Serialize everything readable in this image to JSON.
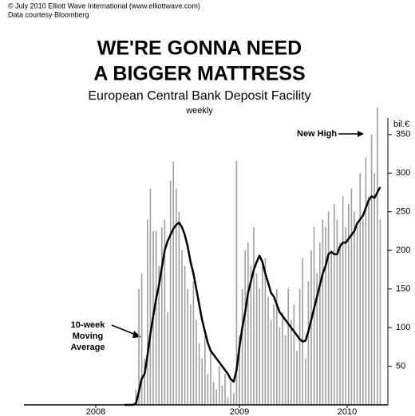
{
  "chart_data": {
    "type": "bar-line",
    "header": [
      "© July 2010 Elliott Wave International (www.elliottwave.com)",
      "Data courtesy Bloomberg"
    ],
    "title": [
      "WE'RE GONNA NEED",
      "A BIGGER MATTRESS"
    ],
    "subtitle": [
      "European Central Bank Deposit Facility",
      "weekly"
    ],
    "y_label": "bil.€",
    "xlim": [
      2008.0,
      2010.5
    ],
    "xticks": [
      {
        "value": 2008.5,
        "label": "2008"
      },
      {
        "value": 2009.5,
        "label": "2009"
      },
      {
        "value": 2010.25,
        "label": "2010"
      }
    ],
    "ylim": [
      0,
      390
    ],
    "yticks": [
      50,
      100,
      150,
      200,
      250,
      300,
      350
    ],
    "x": [
      2008.7,
      2008.72,
      2008.74,
      2008.76,
      2008.78,
      2008.8,
      2008.82,
      2008.84,
      2008.86,
      2008.88,
      2008.9,
      2008.92,
      2008.94,
      2008.96,
      2008.98,
      2009.0,
      2009.02,
      2009.04,
      2009.06,
      2009.08,
      2009.1,
      2009.12,
      2009.14,
      2009.16,
      2009.18,
      2009.2,
      2009.22,
      2009.24,
      2009.26,
      2009.28,
      2009.3,
      2009.32,
      2009.34,
      2009.36,
      2009.38,
      2009.4,
      2009.42,
      2009.44,
      2009.46,
      2009.48,
      2009.5,
      2009.52,
      2009.54,
      2009.56,
      2009.58,
      2009.6,
      2009.62,
      2009.64,
      2009.66,
      2009.68,
      2009.7,
      2009.72,
      2009.74,
      2009.76,
      2009.78,
      2009.8,
      2009.82,
      2009.84,
      2009.86,
      2009.88,
      2009.9,
      2009.92,
      2009.94,
      2009.96,
      2009.98,
      2010.0,
      2010.02,
      2010.04,
      2010.06,
      2010.08,
      2010.1,
      2010.12,
      2010.14,
      2010.16,
      2010.18,
      2010.2,
      2010.22,
      2010.24,
      2010.26,
      2010.28,
      2010.3,
      2010.32,
      2010.34,
      2010.36,
      2010.38,
      2010.4,
      2010.42,
      2010.44,
      2010.46,
      2010.48
    ],
    "series": [
      {
        "kind": "bar",
        "color": "#a0a0a0",
        "values": [
          0,
          0,
          0,
          0,
          20,
          150,
          170,
          60,
          240,
          280,
          225,
          225,
          180,
          230,
          240,
          120,
          290,
          315,
          280,
          250,
          200,
          180,
          150,
          130,
          160,
          110,
          80,
          60,
          90,
          40,
          70,
          30,
          20,
          50,
          25,
          40,
          10,
          30,
          15,
          316,
          90,
          150,
          200,
          210,
          180,
          230,
          170,
          150,
          180,
          190,
          140,
          110,
          130,
          150,
          100,
          120,
          90,
          150,
          110,
          130,
          70,
          150,
          190,
          60,
          160,
          200,
          230,
          170,
          210,
          240,
          230,
          250,
          200,
          260,
          240,
          210,
          270,
          230,
          260,
          280,
          250,
          230,
          300,
          240,
          320,
          270,
          350,
          300,
          385,
          240
        ]
      },
      {
        "kind": "line",
        "color": "#000000",
        "values": [
          0,
          0,
          0,
          0,
          2,
          17,
          34,
          40,
          64,
          92,
          115,
          137,
          155,
          178,
          200,
          212,
          220,
          228,
          233,
          236,
          230,
          220,
          205,
          185,
          170,
          150,
          130,
          110,
          95,
          80,
          70,
          65,
          60,
          55,
          50,
          45,
          40,
          33,
          30,
          45,
          75,
          100,
          120,
          145,
          160,
          175,
          185,
          193,
          185,
          170,
          158,
          145,
          140,
          130,
          120,
          115,
          110,
          105,
          100,
          95,
          90,
          85,
          82,
          83,
          95,
          110,
          125,
          140,
          155,
          170,
          180,
          195,
          198,
          195,
          195,
          205,
          210,
          210,
          215,
          220,
          225,
          235,
          240,
          245,
          255,
          265,
          270,
          268,
          275,
          282
        ]
      }
    ],
    "annotations": [
      [
        "New High"
      ],
      [
        "10-week",
        "Moving",
        "Average"
      ]
    ]
  }
}
